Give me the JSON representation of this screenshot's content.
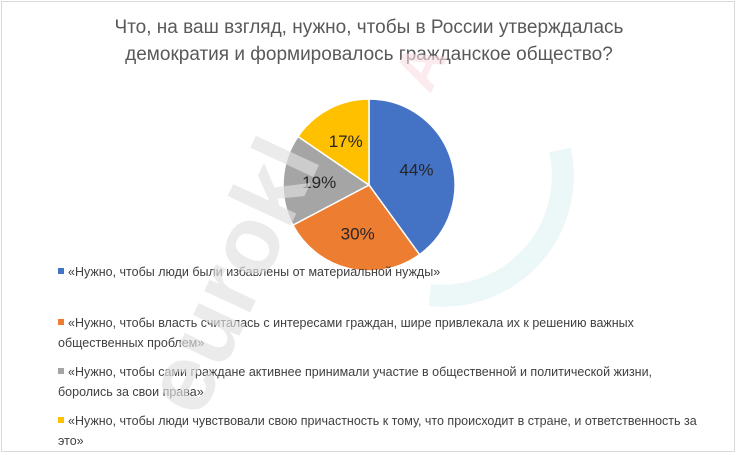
{
  "chart_data": {
    "type": "pie",
    "title_lines": [
      "Что, на ваш взгляд, нужно, чтобы в России утверждалась",
      "демократия и формировалось гражданское общество?"
    ],
    "labels": [
      "«Нужно, чтобы люди были избавлены от материальной нужды»",
      "«Нужно, чтобы власть считалась с интересами граждан, шире привлекала их к решению важных общественных проблем»",
      "«Нужно, чтобы сами граждане активнее принимали участие в общественной и политической жизни, боролись за свои права»",
      "«Нужно, чтобы люди чувствовали свою причастность к тому, что происходит в стране, и ответственность за это»"
    ],
    "values": [
      44,
      30,
      19,
      17
    ],
    "value_labels": [
      "44%",
      "30%",
      "19%",
      "17%"
    ],
    "colors": [
      "#4472c4",
      "#ed7d31",
      "#a5a5a5",
      "#ffc000"
    ],
    "legend_position": "bottom-left"
  },
  "watermark": {
    "text": "eurokl",
    "colors": [
      "#e8e8e8",
      "#f9dde3",
      "#dff1f4"
    ]
  }
}
